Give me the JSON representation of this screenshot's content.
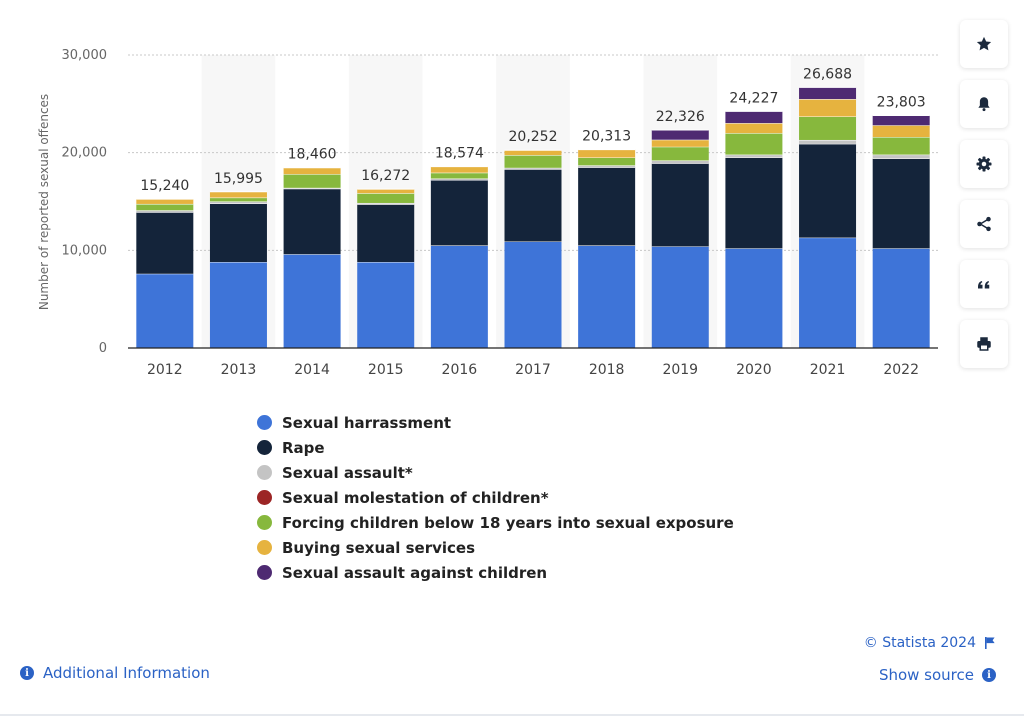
{
  "chart_data": {
    "type": "bar",
    "stacked": true,
    "ylabel": "Number of reported sexual offences",
    "xlabel": "",
    "ylim": [
      0,
      30000
    ],
    "yticks": [
      0,
      10000,
      20000,
      30000
    ],
    "ytick_labels": [
      "0",
      "10,000",
      "20,000",
      "30,000"
    ],
    "grid": true,
    "categories": [
      "2012",
      "2013",
      "2014",
      "2015",
      "2016",
      "2017",
      "2018",
      "2019",
      "2020",
      "2021",
      "2022"
    ],
    "totals": [
      15240,
      15995,
      18460,
      16272,
      18574,
      20252,
      20313,
      22326,
      24227,
      26688,
      23803
    ],
    "total_labels": [
      "15,240",
      "15,995",
      "18,460",
      "16,272",
      "18,574",
      "20,252",
      "20,313",
      "22,326",
      "24,227",
      "26,688",
      "23,803"
    ],
    "series": [
      {
        "name": "Sexual harrassment",
        "color": "#3e74d8",
        "values": [
          7600,
          8800,
          9600,
          8800,
          10500,
          10900,
          10500,
          10400,
          10200,
          11300,
          10200
        ]
      },
      {
        "name": "Rape",
        "color": "#14243a",
        "values": [
          6300,
          6000,
          6700,
          5900,
          6700,
          7400,
          8000,
          8500,
          9300,
          9600,
          9200
        ]
      },
      {
        "name": "Sexual assault*",
        "color": "#c4c4c4",
        "values": [
          200,
          200,
          100,
          150,
          150,
          150,
          200,
          300,
          300,
          400,
          400
        ]
      },
      {
        "name": "Sexual molestation of children*",
        "color": "#9c2525",
        "values": [
          0,
          0,
          0,
          0,
          0,
          0,
          0,
          0,
          0,
          0,
          0
        ]
      },
      {
        "name": "Forcing children below 18 years into sexual exposure",
        "color": "#87b83d",
        "values": [
          650,
          400,
          1400,
          1000,
          600,
          1300,
          800,
          1400,
          2200,
          2400,
          1800
        ]
      },
      {
        "name": "Buying sexual services",
        "color": "#e6b33f",
        "values": [
          490,
          595,
          660,
          422,
          624,
          502,
          813,
          726,
          1027,
          1788,
          1203
        ]
      },
      {
        "name": "Sexual assault against children",
        "color": "#4e2a72",
        "values": [
          0,
          0,
          0,
          0,
          0,
          0,
          0,
          1000,
          1200,
          1200,
          1000
        ]
      }
    ]
  },
  "footer": {
    "additional_info": "Additional Information",
    "copyright": "© Statista 2024",
    "show_source": "Show source"
  },
  "toolbar": {
    "icons": [
      "star-icon",
      "bell-icon",
      "gear-icon",
      "share-icon",
      "quote-icon",
      "print-icon"
    ]
  }
}
